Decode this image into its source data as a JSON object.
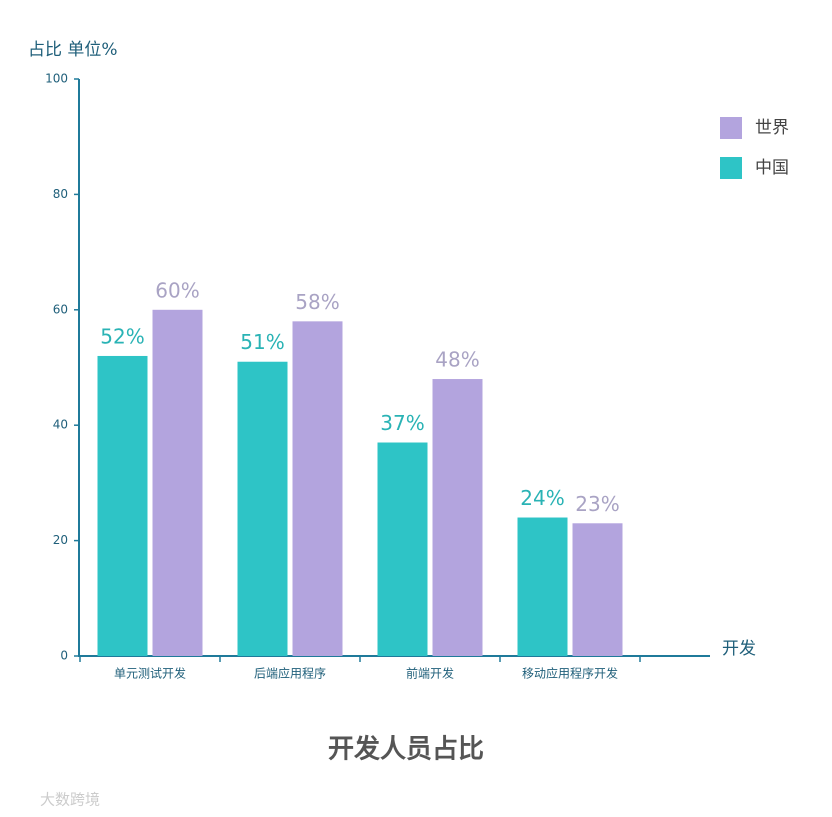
{
  "chart_data": {
    "type": "bar",
    "title": "开发人员占比",
    "y_axis_label": "占比 单位%",
    "x_axis_label": "开发",
    "categories": [
      "单元测试开发",
      "后端应用程序",
      "前端开发",
      "移动应用程序开发"
    ],
    "series": [
      {
        "name": "中国",
        "color": "#2ec4c6",
        "values": [
          52,
          51,
          37,
          24
        ],
        "value_labels": [
          "52%",
          "51%",
          "37%",
          "24%"
        ]
      },
      {
        "name": "世界",
        "color": "#b3a4de",
        "values": [
          60,
          58,
          48,
          23
        ],
        "value_labels": [
          "60%",
          "58%",
          "48%",
          "23%"
        ]
      }
    ],
    "ylim": [
      0,
      100
    ],
    "yticks": [
      0,
      20,
      40,
      60,
      80,
      100
    ],
    "grid": false,
    "legend": "top-right",
    "watermark": "大数跨境"
  }
}
